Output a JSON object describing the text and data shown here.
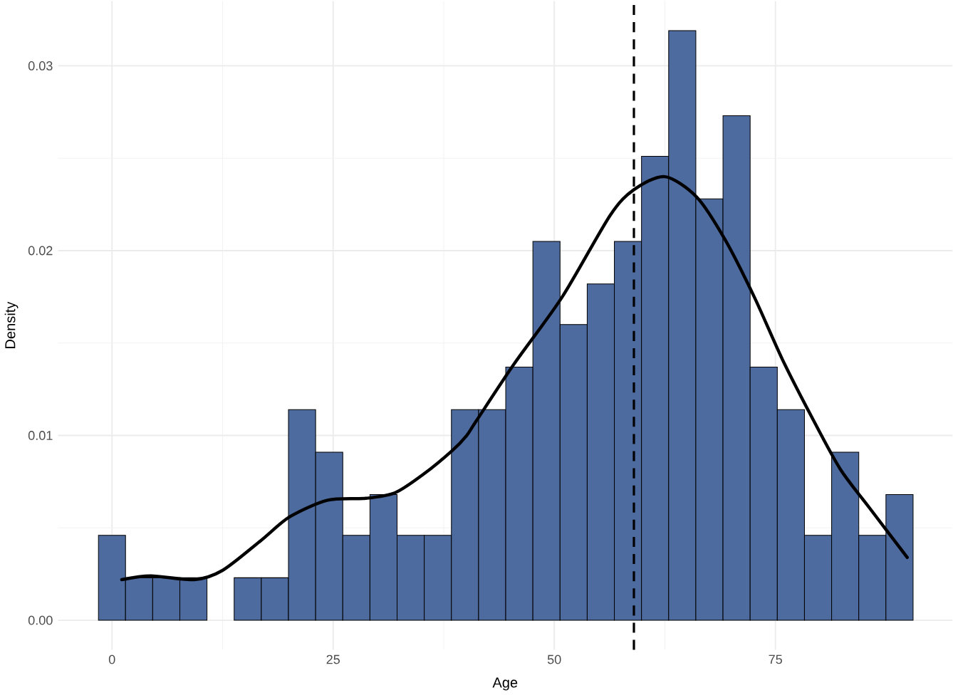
{
  "chart_data": {
    "type": "histogram",
    "xlabel": "Age",
    "ylabel": "Density",
    "xlim": [
      -6.1,
      95.0
    ],
    "ylim": [
      -0.0016,
      0.0335
    ],
    "xticks": [
      0,
      25,
      50,
      75
    ],
    "yticks": [
      {
        "value": 0,
        "label": "0.00"
      },
      {
        "value": 0.01,
        "label": "0.01"
      },
      {
        "value": 0.02,
        "label": "0.02"
      },
      {
        "value": 0.03,
        "label": "0.03"
      }
    ],
    "grid": true,
    "series": [
      {
        "type": "histogram",
        "color": "#4e6b9f",
        "bins": [
          -1.53,
          1.53,
          4.6,
          7.67,
          10.74,
          13.81,
          16.88,
          19.95,
          23.02,
          26.09,
          29.16,
          32.23,
          35.3,
          38.37,
          41.44,
          44.51,
          47.58,
          50.65,
          53.72,
          56.79,
          59.86,
          62.93,
          66.0,
          69.07,
          72.14,
          75.21,
          78.28,
          81.35,
          84.42,
          87.49,
          90.56
        ],
        "values": [
          0.0046,
          0.0023,
          0.0023,
          0.0023,
          0,
          0.0023,
          0.0023,
          0.0114,
          0.0091,
          0.0046,
          0.0068,
          0.0046,
          0.0046,
          0.0114,
          0.0114,
          0.0137,
          0.0205,
          0.016,
          0.0182,
          0.0205,
          0.0251,
          0.0319,
          0.0228,
          0.0273,
          0.0137,
          0.0114,
          0.0046,
          0.0091,
          0.0046,
          0.0068
        ]
      },
      {
        "type": "line",
        "color": "#000000",
        "x": [
          1.1,
          4.4,
          9.3,
          12.5,
          16.8,
          20.1,
          24.4,
          28.7,
          32.0,
          35.2,
          38.5,
          40.1,
          41.2,
          45.5,
          50.9,
          56.3,
          59.0,
          62.5,
          66.1,
          69.3,
          72.6,
          75.8,
          79.1,
          82.3,
          85.6,
          89.9
        ],
        "values": [
          0.0022,
          0.0024,
          0.0022,
          0.0027,
          0.0043,
          0.0056,
          0.0065,
          0.0066,
          0.0069,
          0.0079,
          0.0092,
          0.01,
          0.0108,
          0.0139,
          0.0175,
          0.0219,
          0.0233,
          0.024,
          0.0229,
          0.0206,
          0.0175,
          0.0141,
          0.011,
          0.0082,
          0.0061,
          0.0034
        ]
      }
    ],
    "ref_lines": [
      {
        "axis": "x",
        "value": 59,
        "color": "#000000",
        "line_style": "dashed"
      }
    ]
  }
}
